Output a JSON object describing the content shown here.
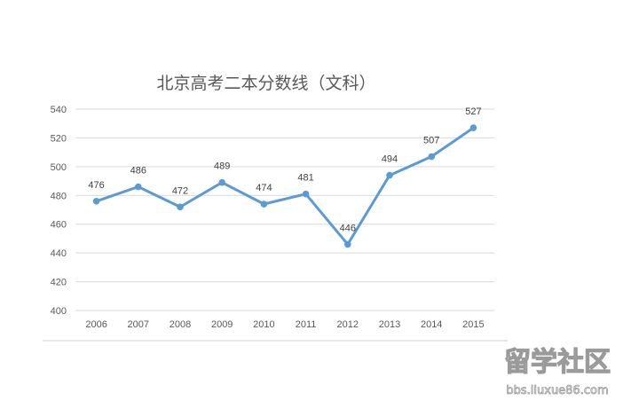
{
  "chart_data": {
    "type": "line",
    "title": "北京高考二本分数线（文科）",
    "categories": [
      "2006",
      "2007",
      "2008",
      "2009",
      "2010",
      "2011",
      "2012",
      "2013",
      "2014",
      "2015"
    ],
    "series": [
      {
        "values": [
          476,
          486,
          472,
          489,
          474,
          481,
          446,
          494,
          507,
          527
        ]
      }
    ],
    "ylim": [
      400,
      540
    ],
    "yticks": [
      400,
      420,
      440,
      460,
      480,
      500,
      520,
      540
    ],
    "grid": true,
    "data_labels": true,
    "legend": "none",
    "colors": {
      "series": "#5B9BD5",
      "grid": "#d9d9d9",
      "text": "#595959"
    }
  },
  "watermark": {
    "text": "留学社区",
    "url": "bbs.liuxue86.com"
  }
}
